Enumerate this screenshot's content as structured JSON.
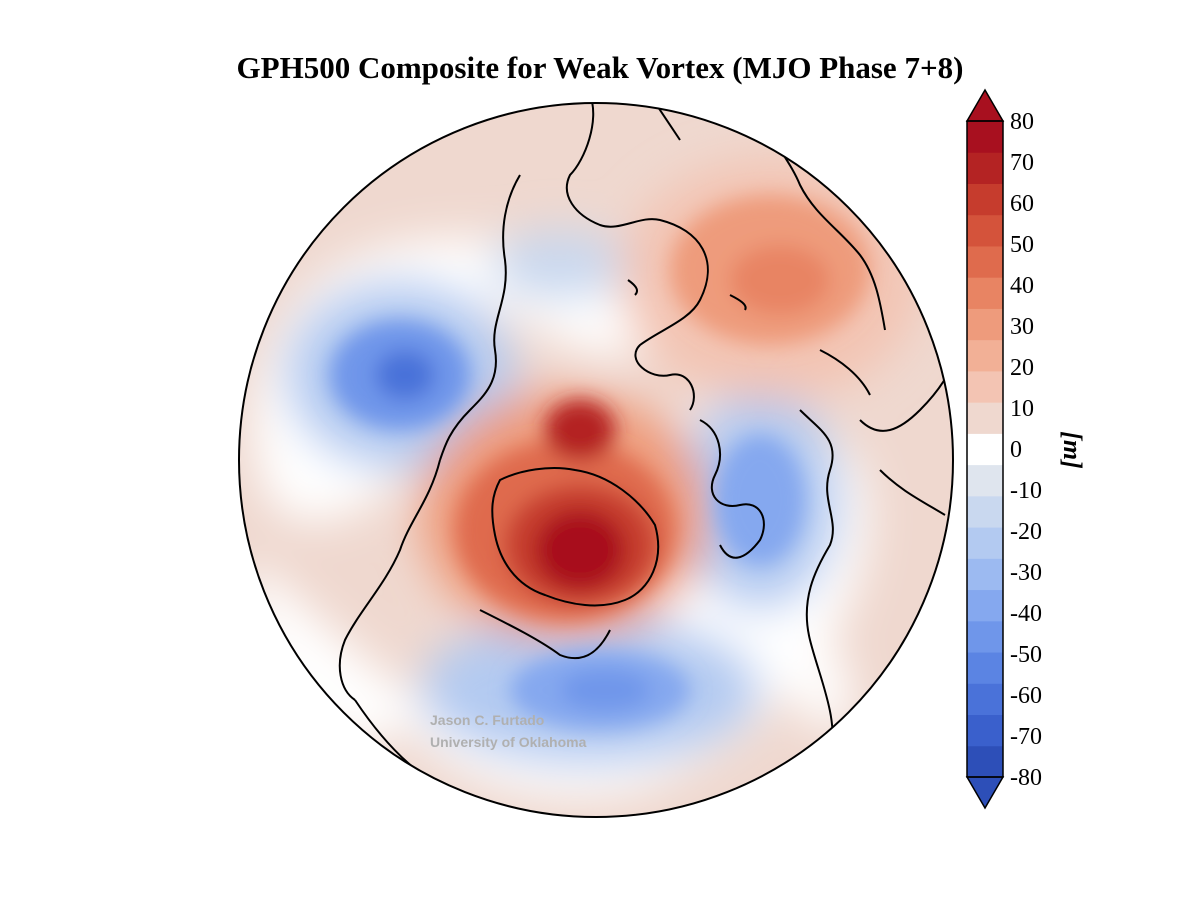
{
  "title": "GPH500 Composite for Weak Vortex (MJO Phase 7+8)",
  "colorbar": {
    "unit": "[m]",
    "ticks": [
      "80",
      "70",
      "60",
      "50",
      "40",
      "30",
      "20",
      "10",
      "0",
      "-10",
      "-20",
      "-30",
      "-40",
      "-50",
      "-60",
      "-70",
      "-80"
    ],
    "range": [
      -80,
      80
    ],
    "extend": "both",
    "colors": [
      "#2d4fb8",
      "#3a60cc",
      "#4a72d9",
      "#5b84e3",
      "#6f96ea",
      "#85a8ef",
      "#9cbaf1",
      "#b3caf1",
      "#c9d8ef",
      "#dfe5ee",
      "#ffffff",
      "#efd8cf",
      "#f3c4b3",
      "#f2b096",
      "#ee9b7c",
      "#e88463",
      "#df6b4d",
      "#d4533b",
      "#c63c2d",
      "#b42323",
      "#a8101f"
    ]
  },
  "watermark": {
    "line1": "Jason C. Furtado",
    "line2": "University of Oklahoma"
  },
  "map": {
    "projection": "north-polar-stereographic",
    "variable": "500 hPa geopotential height anomaly"
  }
}
